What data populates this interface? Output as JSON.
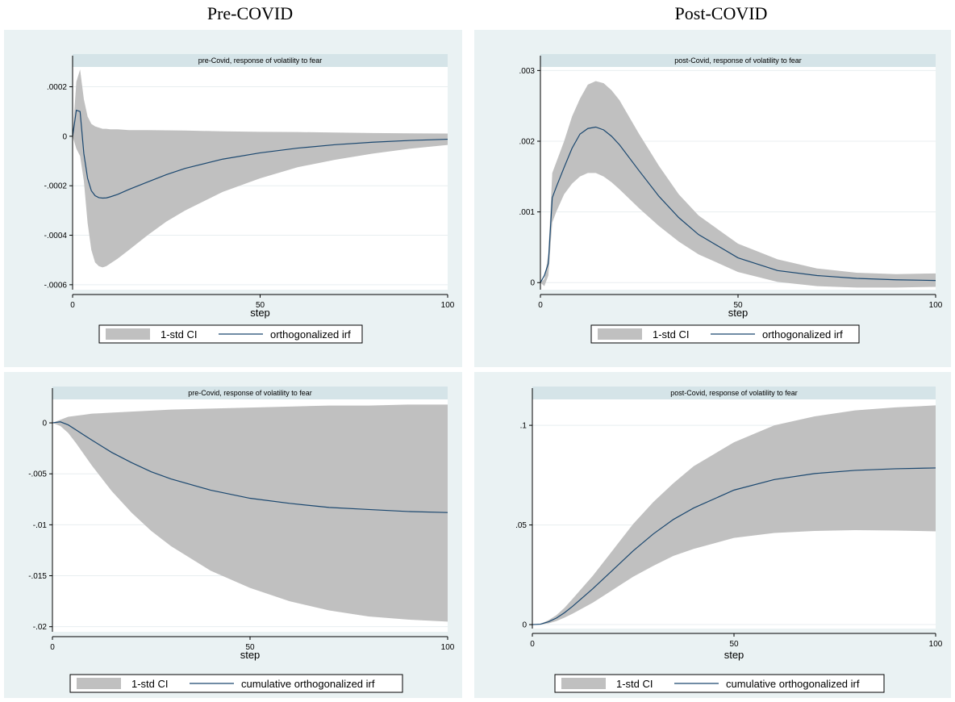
{
  "headings": {
    "left": "Pre-COVID",
    "right": "Post-COVID"
  },
  "colors": {
    "panel_bg": "#eaf2f3",
    "plot_bg": "#ffffff",
    "title_strip": "#d5e4e8",
    "ci_fill": "#c0c0c0",
    "irf_line": "#1a476f",
    "gridline": "#e8eef0"
  },
  "chart_data": [
    {
      "type": "area",
      "title": "pre-Covid, response of volatility to fear",
      "xlabel": "step",
      "ylabel": "",
      "xlim": [
        0,
        100
      ],
      "ylim": [
        -0.00062,
        0.00028
      ],
      "xticks": [
        0,
        50,
        100
      ],
      "xtick_labels": [
        "0",
        "50",
        "100"
      ],
      "yticks": [
        0.0002,
        0,
        -0.0002,
        -0.0004,
        -0.0006
      ],
      "ytick_labels": [
        ".0002",
        "0",
        "-.0002",
        "-.0004",
        "-.0006"
      ],
      "grid": true,
      "legend_position": "bottom",
      "series": [
        {
          "name": "1-std CI",
          "kind": "band",
          "x": [
            0,
            1,
            2,
            3,
            4,
            5,
            6,
            7,
            8,
            9,
            10,
            12,
            15,
            20,
            25,
            30,
            40,
            50,
            60,
            70,
            80,
            90,
            100
          ],
          "lower": [
            0,
            -5e-05,
            -8e-05,
            -0.00018,
            -0.00035,
            -0.00046,
            -0.00051,
            -0.000525,
            -0.00053,
            -0.000525,
            -0.000515,
            -0.000495,
            -0.00046,
            -0.0004,
            -0.000345,
            -0.0003,
            -0.000225,
            -0.00017,
            -0.000125,
            -9.5e-05,
            -7e-05,
            -5e-05,
            -3.5e-05
          ],
          "upper": [
            0,
            0.00022,
            0.00027,
            0.00015,
            8e-05,
            5e-05,
            4e-05,
            3.5e-05,
            3e-05,
            3e-05,
            2.8e-05,
            2.8e-05,
            2.5e-05,
            2.5e-05,
            2.4e-05,
            2.3e-05,
            2e-05,
            1.8e-05,
            1.7e-05,
            1.5e-05,
            1.3e-05,
            1.2e-05,
            1.1e-05
          ]
        },
        {
          "name": "orthogonalized irf",
          "kind": "line",
          "x": [
            0,
            1,
            2,
            3,
            4,
            5,
            6,
            7,
            8,
            9,
            10,
            12,
            15,
            20,
            25,
            30,
            40,
            50,
            60,
            70,
            80,
            90,
            100
          ],
          "y": [
            0,
            0.000105,
            0.0001,
            -7e-05,
            -0.00017,
            -0.00022,
            -0.00024,
            -0.000248,
            -0.00025,
            -0.000249,
            -0.000245,
            -0.000235,
            -0.000215,
            -0.000185,
            -0.000155,
            -0.00013,
            -9.25e-05,
            -6.7e-05,
            -4.8e-05,
            -3.4e-05,
            -2.4e-05,
            -1.7e-05,
            -1.2e-05
          ]
        }
      ]
    },
    {
      "type": "area",
      "title": "post-Covid, response of volatility to fear",
      "xlabel": "step",
      "ylabel": "",
      "xlim": [
        0,
        100
      ],
      "ylim": [
        -0.0001,
        0.00305
      ],
      "xticks": [
        0,
        50,
        100
      ],
      "xtick_labels": [
        "0",
        "50",
        "100"
      ],
      "yticks": [
        0.003,
        0.002,
        0.001,
        0
      ],
      "ytick_labels": [
        ".003",
        ".002",
        ".001",
        "0"
      ],
      "grid": true,
      "legend_position": "bottom",
      "series": [
        {
          "name": "1-std CI",
          "kind": "band",
          "x": [
            0,
            1,
            2,
            3,
            4,
            6,
            8,
            10,
            12,
            14,
            16,
            18,
            20,
            25,
            30,
            35,
            40,
            50,
            60,
            70,
            80,
            90,
            100
          ],
          "lower": [
            0,
            -5e-05,
            0.0001,
            0.00085,
            0.001,
            0.00125,
            0.0014,
            0.0015,
            0.00155,
            0.00155,
            0.0015,
            0.00142,
            0.00132,
            0.00105,
            0.0008,
            0.00058,
            0.0004,
            0.00015,
            1e-05,
            -5e-05,
            -7e-05,
            -7e-05,
            -6e-05
          ],
          "upper": [
            0,
            5e-05,
            0.0004,
            0.00155,
            0.0017,
            0.002,
            0.00235,
            0.0026,
            0.0028,
            0.00285,
            0.00282,
            0.00272,
            0.00258,
            0.0021,
            0.00165,
            0.00125,
            0.00095,
            0.00055,
            0.00033,
            0.0002,
            0.00014,
            0.00012,
            0.00013
          ]
        },
        {
          "name": "orthogonalized irf",
          "kind": "line",
          "x": [
            0,
            1,
            2,
            3,
            4,
            6,
            8,
            10,
            12,
            14,
            16,
            18,
            20,
            25,
            30,
            35,
            40,
            50,
            60,
            70,
            80,
            90,
            100
          ],
          "y": [
            0,
            0.0001,
            0.00027,
            0.0012,
            0.00135,
            0.00163,
            0.0019,
            0.0021,
            0.00218,
            0.0022,
            0.00216,
            0.00207,
            0.00195,
            0.00158,
            0.00122,
            0.00092,
            0.00068,
            0.00035,
            0.00017,
            0.0001,
            6e-05,
            4e-05,
            3e-05
          ]
        }
      ]
    },
    {
      "type": "area",
      "title": "pre-Covid, response of volatility to fear",
      "xlabel": "step",
      "ylabel": "",
      "xlim": [
        0,
        100
      ],
      "ylim": [
        -0.0205,
        0.0023
      ],
      "xticks": [
        0,
        50,
        100
      ],
      "xtick_labels": [
        "0",
        "50",
        "100"
      ],
      "yticks": [
        0,
        -0.005,
        -0.01,
        -0.015,
        -0.02
      ],
      "ytick_labels": [
        "0",
        "-.005",
        "-.01",
        "-.015",
        "-.02"
      ],
      "grid": true,
      "legend_position": "bottom",
      "series": [
        {
          "name": "1-std CI",
          "kind": "band",
          "x": [
            0,
            2,
            4,
            6,
            8,
            10,
            15,
            20,
            25,
            30,
            40,
            50,
            60,
            70,
            80,
            90,
            100
          ],
          "lower": [
            0,
            -0.0003,
            -0.001,
            -0.002,
            -0.0031,
            -0.0042,
            -0.0067,
            -0.0088,
            -0.0106,
            -0.0121,
            -0.0145,
            -0.0162,
            -0.0175,
            -0.0184,
            -0.019,
            -0.0193,
            -0.0195
          ],
          "upper": [
            0,
            0.0003,
            0.0006,
            0.0007,
            0.0008,
            0.0009,
            0.001,
            0.0011,
            0.0012,
            0.0013,
            0.0014,
            0.0015,
            0.0016,
            0.0017,
            0.0017,
            0.0018,
            0.0018
          ]
        },
        {
          "name": "cumulative orthogonalized irf",
          "kind": "line",
          "x": [
            0,
            2,
            4,
            6,
            8,
            10,
            15,
            20,
            25,
            30,
            40,
            50,
            60,
            70,
            80,
            90,
            100
          ],
          "y": [
            0,
            0.0001,
            -0.0002,
            -0.0007,
            -0.0012,
            -0.0017,
            -0.0029,
            -0.0039,
            -0.0048,
            -0.0055,
            -0.0066,
            -0.0074,
            -0.0079,
            -0.0083,
            -0.0085,
            -0.0087,
            -0.0088
          ]
        }
      ]
    },
    {
      "type": "area",
      "title": "post-Covid, response of volatility to fear",
      "xlabel": "step",
      "ylabel": "",
      "xlim": [
        0,
        100
      ],
      "ylim": [
        -0.002,
        0.113
      ],
      "xticks": [
        0,
        50,
        100
      ],
      "xtick_labels": [
        "0",
        "50",
        "100"
      ],
      "yticks": [
        0.1,
        0.05,
        0
      ],
      "ytick_labels": [
        ".1",
        ".05",
        "0"
      ],
      "grid": true,
      "legend_position": "bottom",
      "series": [
        {
          "name": "1-std CI",
          "kind": "band",
          "x": [
            0,
            2,
            4,
            6,
            8,
            10,
            15,
            20,
            25,
            30,
            35,
            40,
            50,
            60,
            70,
            80,
            90,
            100
          ],
          "lower": [
            0,
            0,
            0.0006,
            0.0018,
            0.0035,
            0.0055,
            0.011,
            0.0175,
            0.024,
            0.0295,
            0.0345,
            0.038,
            0.0435,
            0.046,
            0.047,
            0.0474,
            0.0472,
            0.0468
          ],
          "upper": [
            0,
            0.0004,
            0.0022,
            0.0048,
            0.0085,
            0.013,
            0.0245,
            0.0375,
            0.0505,
            0.0615,
            0.071,
            0.0795,
            0.0915,
            0.1,
            0.1045,
            0.1075,
            0.109,
            0.11
          ]
        },
        {
          "name": "cumulative orthogonalized irf",
          "kind": "line",
          "x": [
            0,
            2,
            4,
            6,
            8,
            10,
            15,
            20,
            25,
            30,
            35,
            40,
            50,
            60,
            70,
            80,
            90,
            100
          ],
          "y": [
            0,
            0.0002,
            0.0014,
            0.0033,
            0.006,
            0.0092,
            0.018,
            0.0275,
            0.037,
            0.0455,
            0.0528,
            0.0585,
            0.0675,
            0.0728,
            0.0758,
            0.0774,
            0.0782,
            0.0786
          ]
        }
      ]
    }
  ]
}
